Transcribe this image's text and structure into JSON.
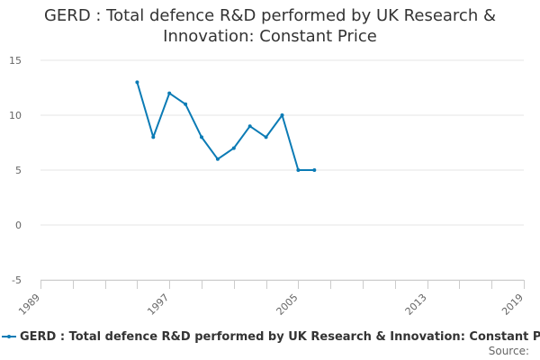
{
  "chart_data": {
    "type": "line",
    "title": "GERD : Total defence R&D performed by UK Research &\nInnovation: Constant Price",
    "xlabel": "",
    "ylabel": "",
    "xlim": [
      1989,
      2019
    ],
    "ylim": [
      -5,
      15
    ],
    "xticks": [
      1989,
      1997,
      2005,
      2013,
      2019
    ],
    "yticks": [
      15,
      10,
      5,
      0,
      -5
    ],
    "grid": true,
    "legend_position": "bottom-left",
    "series": [
      {
        "name": "GERD : Total defence R&D performed by UK Research & Innovation: Constant Price",
        "color": "#0b7bb5",
        "x": [
          1995,
          1996,
          1997,
          1998,
          1999,
          2000,
          2001,
          2002,
          2003,
          2004,
          2005,
          2006
        ],
        "y": [
          13,
          8,
          12,
          11,
          8,
          6,
          7,
          9,
          8,
          10,
          5,
          5
        ]
      }
    ]
  },
  "footer": {
    "source_label": "Source:"
  }
}
